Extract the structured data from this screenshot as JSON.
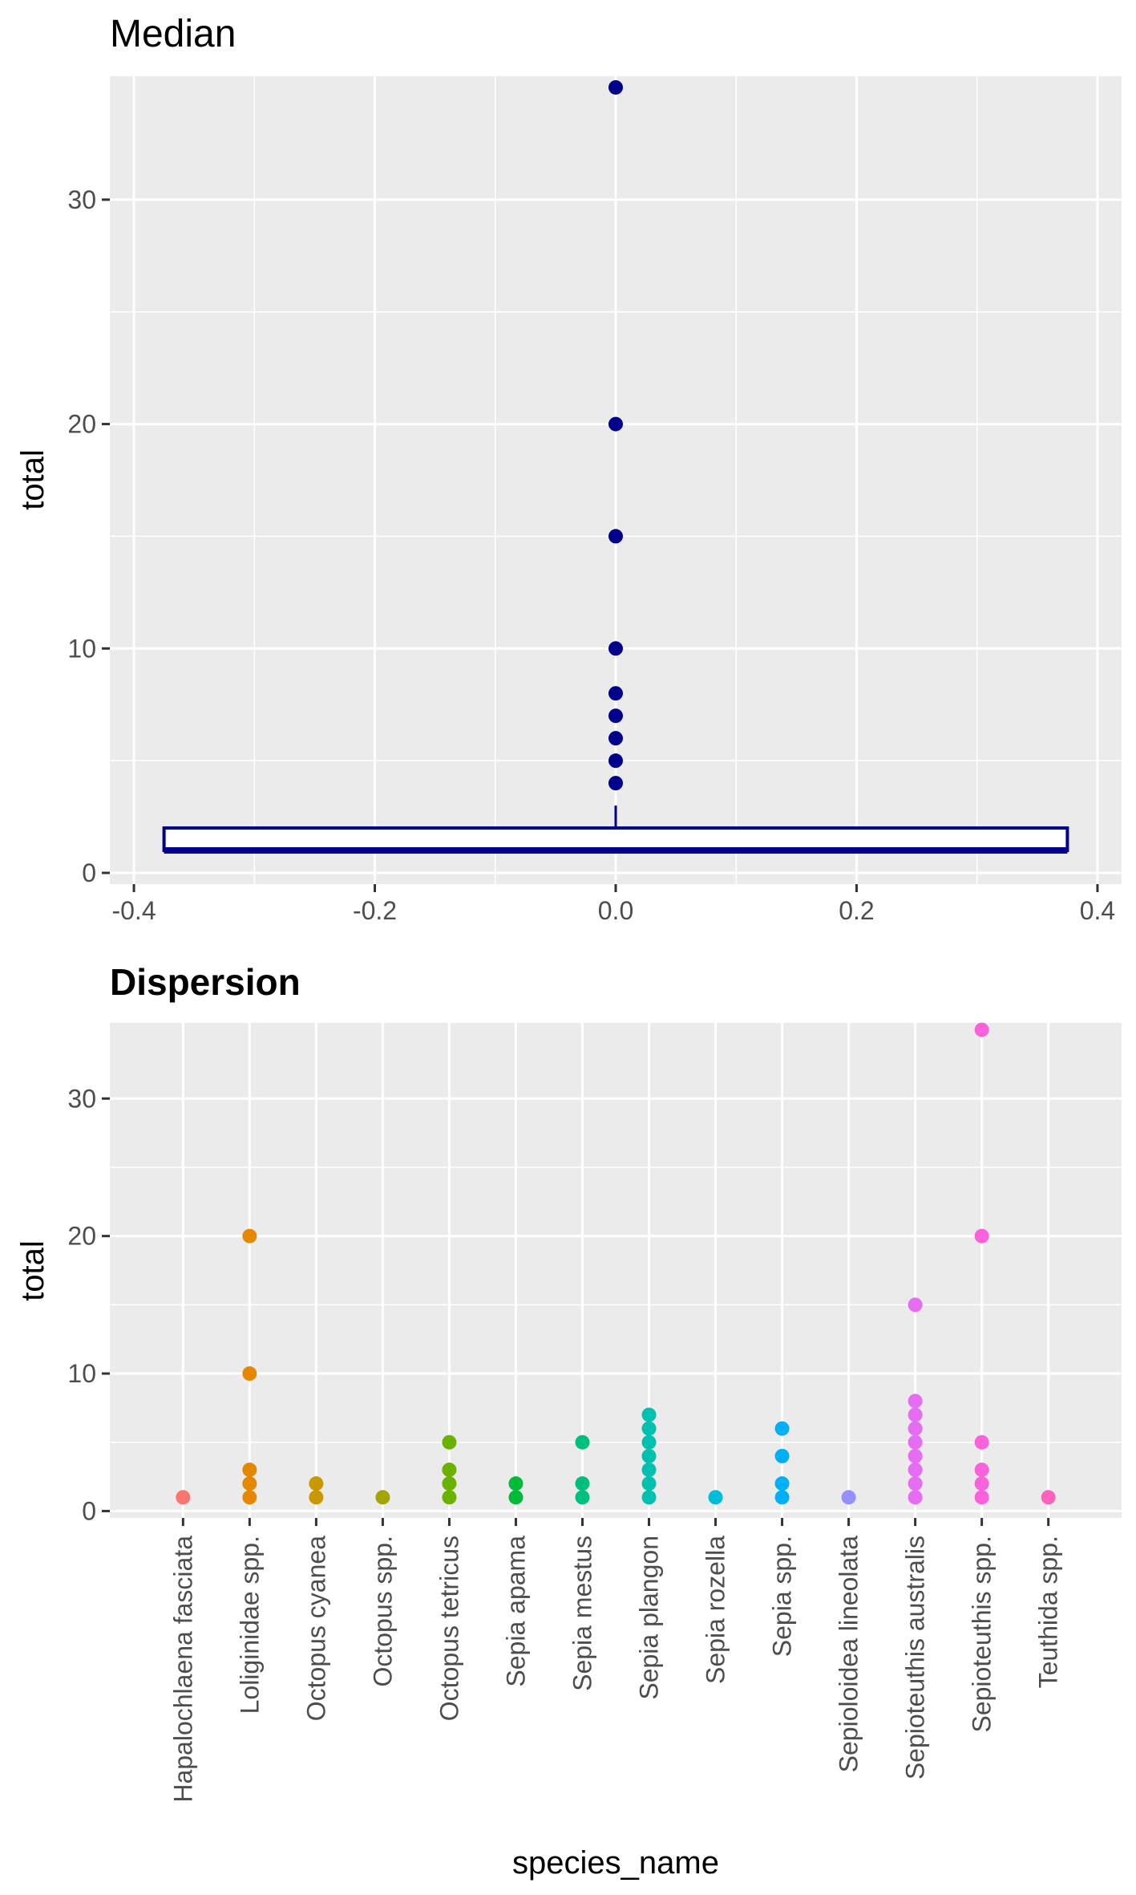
{
  "chart_data": [
    {
      "type": "boxplot",
      "title": "Median",
      "xlabel": "",
      "ylabel": "total",
      "xlim": [
        -0.42,
        0.42
      ],
      "ylim": [
        -0.5,
        35.5
      ],
      "x_ticks": [
        -0.4,
        -0.2,
        0.0,
        0.2,
        0.4
      ],
      "x_tick_labels": [
        "-0.4",
        "-0.2",
        "0.0",
        "0.2",
        "0.4"
      ],
      "y_ticks": [
        0,
        10,
        20,
        30
      ],
      "y_tick_labels": [
        "0",
        "10",
        "20",
        "30"
      ],
      "grid": true,
      "color": "#00008b",
      "box": {
        "x_min": -0.375,
        "x_max": 0.375,
        "q1": 1,
        "median": 1,
        "q3": 2,
        "whisker_low": 1,
        "whisker_high": 3
      },
      "outliers": [
        4,
        5,
        6,
        7,
        8,
        10,
        15,
        20,
        35
      ]
    },
    {
      "type": "scatter",
      "title": "Dispersion",
      "xlabel": "species_name",
      "ylabel": "total",
      "ylim": [
        -0.5,
        35.5
      ],
      "y_ticks": [
        0,
        10,
        20,
        30
      ],
      "y_tick_labels": [
        "0",
        "10",
        "20",
        "30"
      ],
      "grid": true,
      "categories": [
        "Hapalochlaena fasciata",
        "Loliginidae spp.",
        "Octopus cyanea",
        "Octopus spp.",
        "Octopus tetricus",
        "Sepia apama",
        "Sepia mestus",
        "Sepia plangon",
        "Sepia rozella",
        "Sepia spp.",
        "Sepioloidea lineolata",
        "Sepioteuthis australis",
        "Sepioteuthis spp.",
        "Teuthida spp."
      ],
      "colors": [
        "#f8766d",
        "#e58700",
        "#c99800",
        "#a3a500",
        "#6bb100",
        "#00ba38",
        "#00bf7d",
        "#00c0af",
        "#00bcd8",
        "#00b0f6",
        "#9590ff",
        "#e76bf3",
        "#fa62db",
        "#ff62bc"
      ],
      "points": [
        [
          1
        ],
        [
          1,
          2,
          3,
          10,
          20
        ],
        [
          1,
          2
        ],
        [
          1
        ],
        [
          1,
          2,
          3,
          5
        ],
        [
          1,
          2
        ],
        [
          1,
          2,
          5
        ],
        [
          1,
          2,
          3,
          4,
          5,
          6,
          7
        ],
        [
          1
        ],
        [
          1,
          2,
          4,
          6
        ],
        [
          1
        ],
        [
          1,
          2,
          3,
          4,
          5,
          6,
          7,
          8,
          15
        ],
        [
          1,
          2,
          3,
          5,
          20,
          35
        ],
        [
          1
        ]
      ]
    }
  ]
}
